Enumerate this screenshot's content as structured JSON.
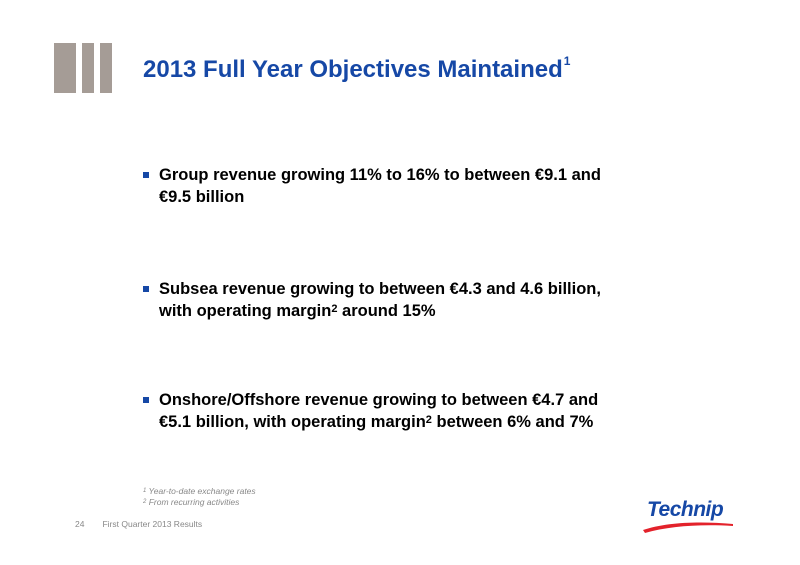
{
  "title": {
    "text": "2013 Full Year Objectives Maintained",
    "sup": "1"
  },
  "bullets": [
    {
      "line1": "Group revenue growing 11% to 16% to between €9.1 and",
      "line2": "€9.5 billion"
    },
    {
      "line1": "Subsea revenue growing to between €4.3 and 4.6 billion,",
      "line2_a": "with operating margin",
      "line2_sup": "2",
      "line2_b": " around 15%"
    },
    {
      "line1": "Onshore/Offshore revenue growing to between €4.7 and",
      "line2_a": "€5.1 billion, with operating margin",
      "line2_sup": "2",
      "line2_b": " between 6% and 7%"
    }
  ],
  "footnotes": [
    {
      "num": "1",
      "text": " Year-to-date exchange rates"
    },
    {
      "num": "2",
      "text": " From recurring activities"
    }
  ],
  "footer": {
    "page": "24",
    "label": "First Quarter 2013 Results"
  },
  "logo": {
    "text": "Technip",
    "color": "#1648a6"
  },
  "colors": {
    "accent": "#1648a6",
    "bars": "#a59c96"
  }
}
